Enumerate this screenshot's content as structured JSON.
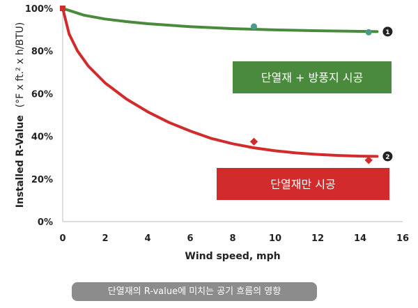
{
  "chart_data": {
    "type": "line",
    "xlabel": "Wind speed, mph",
    "ylabel": "Installed R-Value",
    "ylabel_unit": "(°F x ft.² x h/BTU)",
    "xlim": [
      0,
      16
    ],
    "ylim": [
      0,
      100
    ],
    "x_ticks": [
      "0",
      "2",
      "4",
      "6",
      "8",
      "10",
      "12",
      "14",
      "16"
    ],
    "y_ticks": [
      "0%",
      "20%",
      "40%",
      "60%",
      "80%",
      "100%"
    ],
    "grid": false,
    "series": [
      {
        "name": "단열재 + 방풍지 시공",
        "marker": "❶",
        "color": "#4a8a3c",
        "points": [
          {
            "x": 0,
            "y": 100
          },
          {
            "x": 9,
            "y": 91.5
          },
          {
            "x": 14.4,
            "y": 88.8
          }
        ],
        "curve": [
          [
            0,
            100
          ],
          [
            1,
            96.8
          ],
          [
            2,
            95
          ],
          [
            3,
            93.8
          ],
          [
            4,
            92.8
          ],
          [
            6,
            91.4
          ],
          [
            8,
            90.5
          ],
          [
            10,
            89.9
          ],
          [
            12,
            89.5
          ],
          [
            14,
            89.2
          ],
          [
            14.8,
            89.1
          ]
        ]
      },
      {
        "name": "단열재만 시공",
        "marker": "❷",
        "color": "#d12b2b",
        "points": [
          {
            "x": 0,
            "y": 100
          },
          {
            "x": 9,
            "y": 37.5
          },
          {
            "x": 14.4,
            "y": 28.8
          }
        ],
        "curve": [
          [
            0,
            100
          ],
          [
            0.3,
            88
          ],
          [
            0.7,
            80
          ],
          [
            1.2,
            73
          ],
          [
            2,
            65
          ],
          [
            3,
            57.5
          ],
          [
            4,
            51.5
          ],
          [
            5,
            46.5
          ],
          [
            6,
            42.5
          ],
          [
            7,
            39
          ],
          [
            8,
            36.5
          ],
          [
            9,
            34.6
          ],
          [
            10,
            33.2
          ],
          [
            11,
            32.2
          ],
          [
            12,
            31.5
          ],
          [
            13,
            31
          ],
          [
            14,
            30.7
          ],
          [
            14.8,
            30.6
          ]
        ]
      }
    ]
  },
  "caption": "단열재의 R-value에 미치는 공기 흐름의 영향"
}
